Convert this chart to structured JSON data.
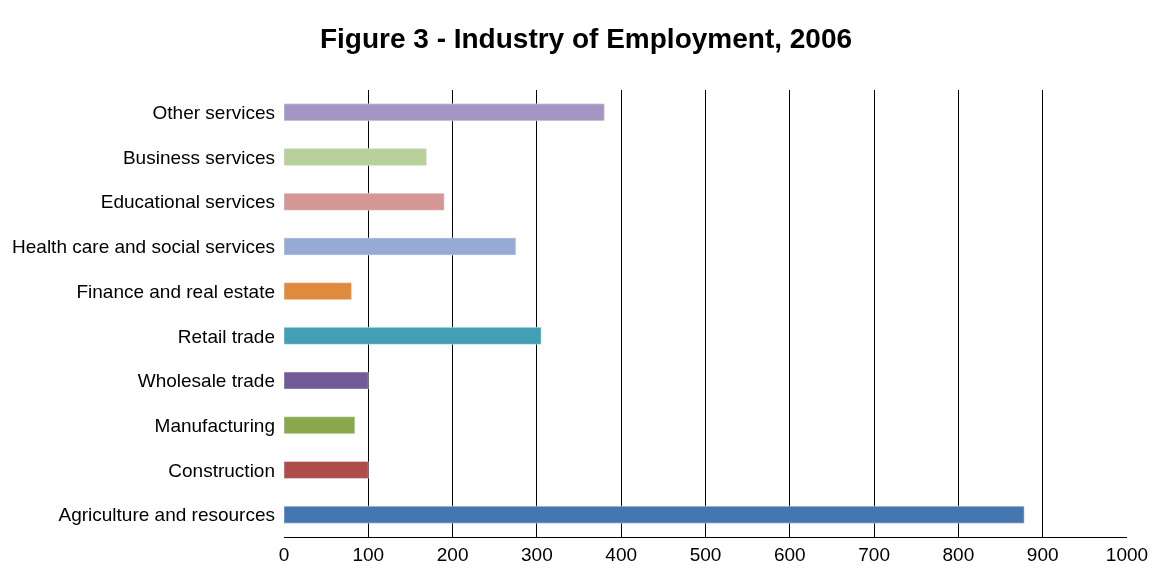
{
  "chart_data": {
    "type": "bar",
    "orientation": "horizontal",
    "title": "Figure 3 - Industry of Employment, 2006",
    "categories": [
      "Other services",
      "Business services",
      "Educational services",
      "Health care and social services",
      "Finance and real estate",
      "Retail trade",
      "Wholesale trade",
      "Manufacturing",
      "Construction",
      "Agriculture and resources"
    ],
    "values": [
      380,
      169,
      190,
      275,
      80,
      305,
      100,
      84,
      100,
      878
    ],
    "colors": [
      "#a595c0",
      "#b8d09a",
      "#d59795",
      "#97aad4",
      "#e08a3e",
      "#43a0b4",
      "#745a98",
      "#8aa84b",
      "#b04c4a",
      "#4676b0"
    ],
    "xlim": [
      0,
      1000
    ],
    "xticks": [
      0,
      100,
      200,
      300,
      400,
      500,
      600,
      700,
      800,
      900,
      1000
    ],
    "grid": "x"
  }
}
